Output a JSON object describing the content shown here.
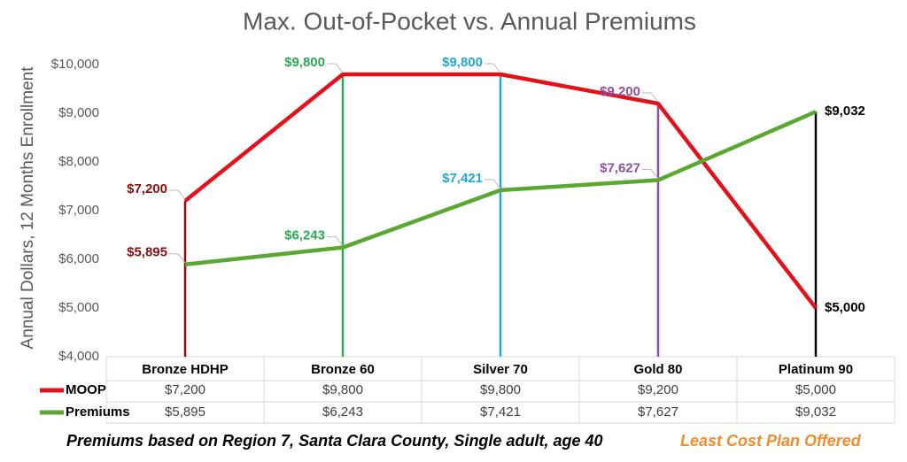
{
  "chart_data": {
    "type": "line",
    "title": "Max. Out-of-Pocket vs. Annual Premiums",
    "y_label": "Annual Dollars, 12 Months Enrollment",
    "categories": [
      "Bronze HDHP",
      "Bronze 60",
      "Silver 70",
      "Gold 80",
      "Platinum 90"
    ],
    "category_colors": [
      "#8b0e0e",
      "#2bab52",
      "#1fa8d8",
      "#8e4fa3",
      "#000000"
    ],
    "series": [
      {
        "name": "MOOP",
        "color": "#e4111b",
        "values": [
          7200,
          9800,
          9800,
          9200,
          5000
        ],
        "value_labels": [
          "$7,200",
          "$9,800",
          "$9,800",
          "$9,200",
          "$5,000"
        ]
      },
      {
        "name": "Premiums",
        "color": "#5aa832",
        "values": [
          5895,
          6243,
          7421,
          7627,
          9032
        ],
        "value_labels": [
          "$5,895",
          "$6,243",
          "$7,421",
          "$7,627",
          "$9,032"
        ]
      }
    ],
    "ylim": [
      4000,
      10000
    ],
    "yticks": [
      {
        "value": 4000,
        "label": "$4,000"
      },
      {
        "value": 5000,
        "label": "$5,000"
      },
      {
        "value": 6000,
        "label": "$6,000"
      },
      {
        "value": 7000,
        "label": "$7,000"
      },
      {
        "value": 8000,
        "label": "$8,000"
      },
      {
        "value": 9000,
        "label": "$9,000"
      },
      {
        "value": 10000,
        "label": "$10,000"
      }
    ],
    "footnote": "Premiums based on Region 7, Santa Clara County, Single adult, age 40",
    "footnote_highlight": "Least Cost Plan Offered",
    "footnote_highlight_color": "#f28a30"
  }
}
